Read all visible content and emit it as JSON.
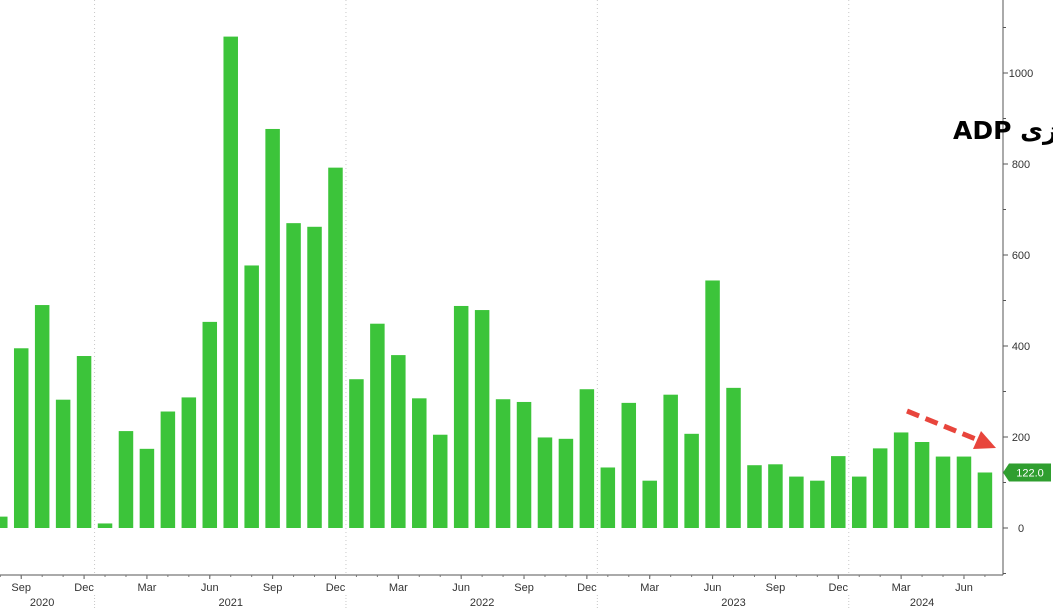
{
  "chart_data": {
    "type": "bar",
    "title": "شاخص تغییرات اشتغال بخش خصوصی وغیرکشاورزی ADP",
    "x": [
      "2020-08",
      "2020-09",
      "2020-10",
      "2020-11",
      "2020-12",
      "2021-01",
      "2021-02",
      "2021-03",
      "2021-04",
      "2021-05",
      "2021-06",
      "2021-07",
      "2021-08",
      "2021-09",
      "2021-10",
      "2021-11",
      "2021-12",
      "2022-01",
      "2022-02",
      "2022-03",
      "2022-04",
      "2022-05",
      "2022-06",
      "2022-07",
      "2022-08",
      "2022-09",
      "2022-10",
      "2022-11",
      "2022-12",
      "2023-01",
      "2023-02",
      "2023-03",
      "2023-04",
      "2023-05",
      "2023-06",
      "2023-07",
      "2023-08",
      "2023-09",
      "2023-10",
      "2023-11",
      "2023-12",
      "2024-01",
      "2024-02",
      "2024-03",
      "2024-04",
      "2024-05",
      "2024-06",
      "2024-07"
    ],
    "values": [
      25,
      395,
      490,
      282,
      378,
      10,
      213,
      174,
      256,
      287,
      453,
      1080,
      577,
      877,
      670,
      662,
      792,
      327,
      449,
      380,
      285,
      205,
      488,
      479,
      283,
      277,
      199,
      196,
      305,
      133,
      275,
      104,
      293,
      207,
      544,
      308,
      138,
      140,
      113,
      104,
      158,
      113,
      175,
      210,
      189,
      157,
      157,
      122
    ],
    "month_ticks": [
      {
        "label": "Sep",
        "x": "2020-09"
      },
      {
        "label": "Dec",
        "x": "2020-12"
      },
      {
        "label": "Mar",
        "x": "2021-03"
      },
      {
        "label": "Jun",
        "x": "2021-06"
      },
      {
        "label": "Sep",
        "x": "2021-09"
      },
      {
        "label": "Dec",
        "x": "2021-12"
      },
      {
        "label": "Mar",
        "x": "2022-03"
      },
      {
        "label": "Jun",
        "x": "2022-06"
      },
      {
        "label": "Sep",
        "x": "2022-09"
      },
      {
        "label": "Dec",
        "x": "2022-12"
      },
      {
        "label": "Mar",
        "x": "2023-03"
      },
      {
        "label": "Jun",
        "x": "2023-06"
      },
      {
        "label": "Sep",
        "x": "2023-09"
      },
      {
        "label": "Dec",
        "x": "2023-12"
      },
      {
        "label": "Mar",
        "x": "2024-03"
      },
      {
        "label": "Jun",
        "x": "2024-06"
      }
    ],
    "year_labels": [
      {
        "label": "2020",
        "x": "2020-10"
      },
      {
        "label": "2021",
        "x": "2021-07"
      },
      {
        "label": "2022",
        "x": "2022-07"
      },
      {
        "label": "2023",
        "x": "2023-07"
      },
      {
        "label": "2024",
        "x": "2024-04"
      }
    ],
    "yticks": [
      0,
      200,
      400,
      600,
      800,
      1000
    ],
    "ylim": [
      -100,
      1150
    ],
    "last_value_label": "122.0",
    "grid": "vertical dotted",
    "colors": {
      "bar": "#3cc43a",
      "last_value_badge": "#2f9e2f",
      "arrow": "#e8453c",
      "grid": "#c8c8c8"
    }
  }
}
